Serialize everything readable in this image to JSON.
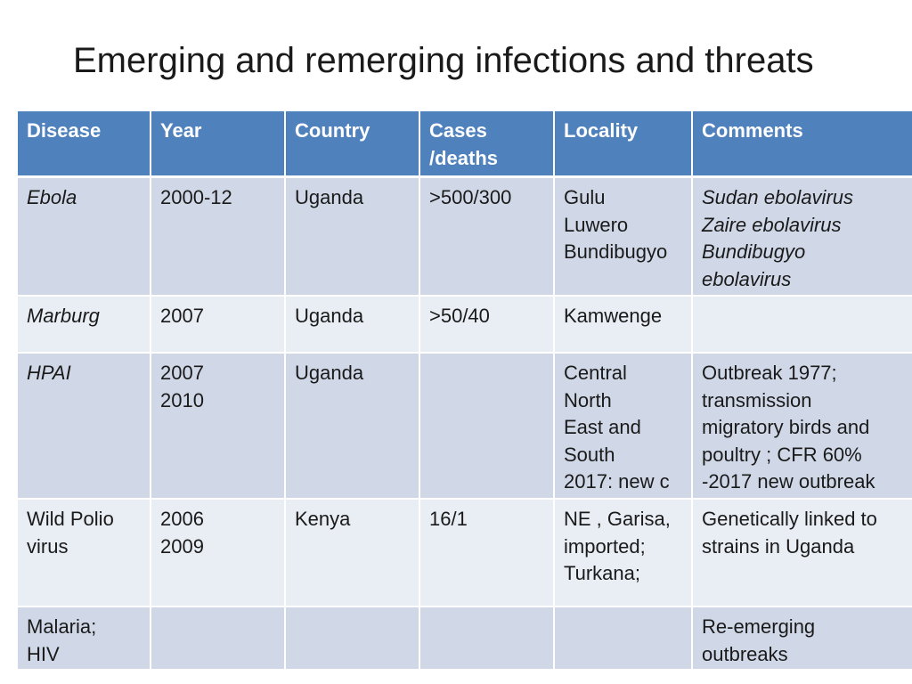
{
  "slide": {
    "title": "Emerging and remerging infections and threats"
  },
  "table": {
    "headers": {
      "disease": "Disease",
      "year": "Year",
      "country": "Country",
      "cases_line1": "Cases",
      "cases_line2": "/deaths",
      "locality": "Locality",
      "comments": "Comments"
    },
    "rows": [
      {
        "disease": [
          "Ebola"
        ],
        "year": [
          "2000-12"
        ],
        "country": [
          "Uganda"
        ],
        "cases": [
          ">500/300"
        ],
        "locality": [
          "Gulu",
          "Luwero",
          "Bundibugyo"
        ],
        "comments": [
          "Sudan ebolavirus",
          "Zaire ebolavirus",
          "Bundibugyo",
          "ebolavirus"
        ]
      },
      {
        "disease": [
          "Marburg"
        ],
        "year": [
          "2007"
        ],
        "country": [
          "Uganda"
        ],
        "cases": [
          ">50/40"
        ],
        "locality": [
          "Kamwenge"
        ],
        "comments": []
      },
      {
        "disease": [
          "HPAI"
        ],
        "year": [
          "2007",
          "2010"
        ],
        "country": [
          "Uganda"
        ],
        "cases": [],
        "locality": [
          "Central",
          "North",
          "East and",
          "South",
          "2017: new c"
        ],
        "comments": [
          "Outbreak 1977;",
          "transmission",
          "migratory birds and",
          "poultry ; CFR 60%",
          "-2017 new outbreak"
        ]
      },
      {
        "disease": [
          "Wild Polio",
          "virus"
        ],
        "year": [
          "2006",
          "2009"
        ],
        "country": [
          "Kenya"
        ],
        "cases": [
          "16/1"
        ],
        "locality": [
          "NE , Garisa,",
          "imported;",
          "Turkana;"
        ],
        "comments": [
          "Genetically linked to",
          "strains in Uganda"
        ]
      },
      {
        "disease": [
          "Malaria;",
          "HIV"
        ],
        "year": [],
        "country": [],
        "cases": [],
        "locality": [],
        "comments": [
          "Re-emerging",
          "outbreaks"
        ]
      }
    ]
  }
}
